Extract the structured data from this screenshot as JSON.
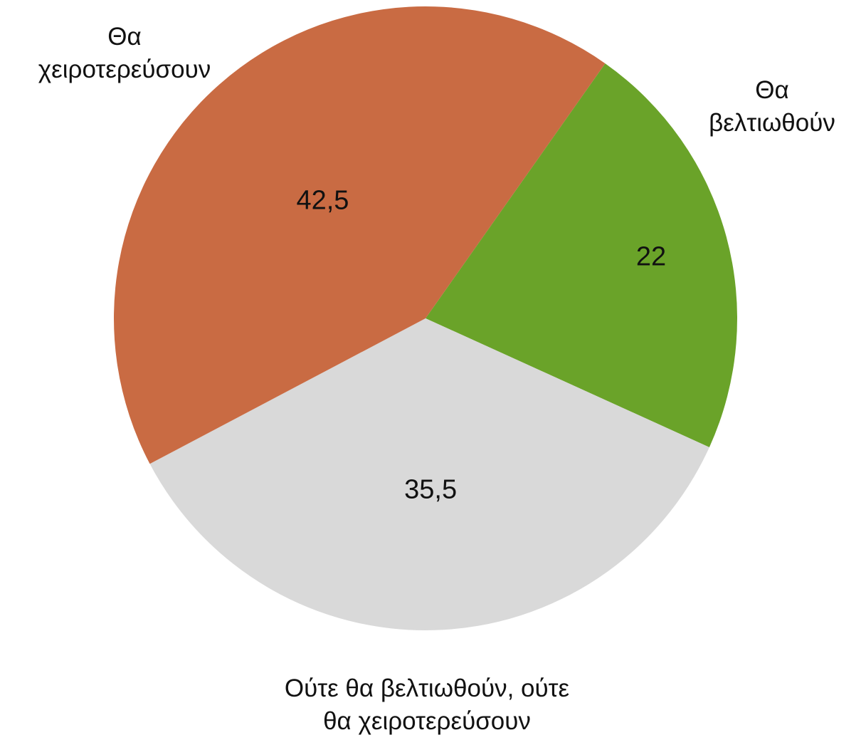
{
  "chart_data": {
    "type": "pie",
    "categories": [
      "Θα\nβελτιωθούν",
      "Ούτε θα βελτιωθούν, ούτε\nθα χειροτερεύσουν",
      "Θα\nχειροτερεύσουν"
    ],
    "values": [
      22,
      35.5,
      42.5
    ],
    "value_labels": [
      "22",
      "35,5",
      "42,5"
    ],
    "colors": [
      "#6aa329",
      "#d9d9d9",
      "#c96b43"
    ]
  }
}
